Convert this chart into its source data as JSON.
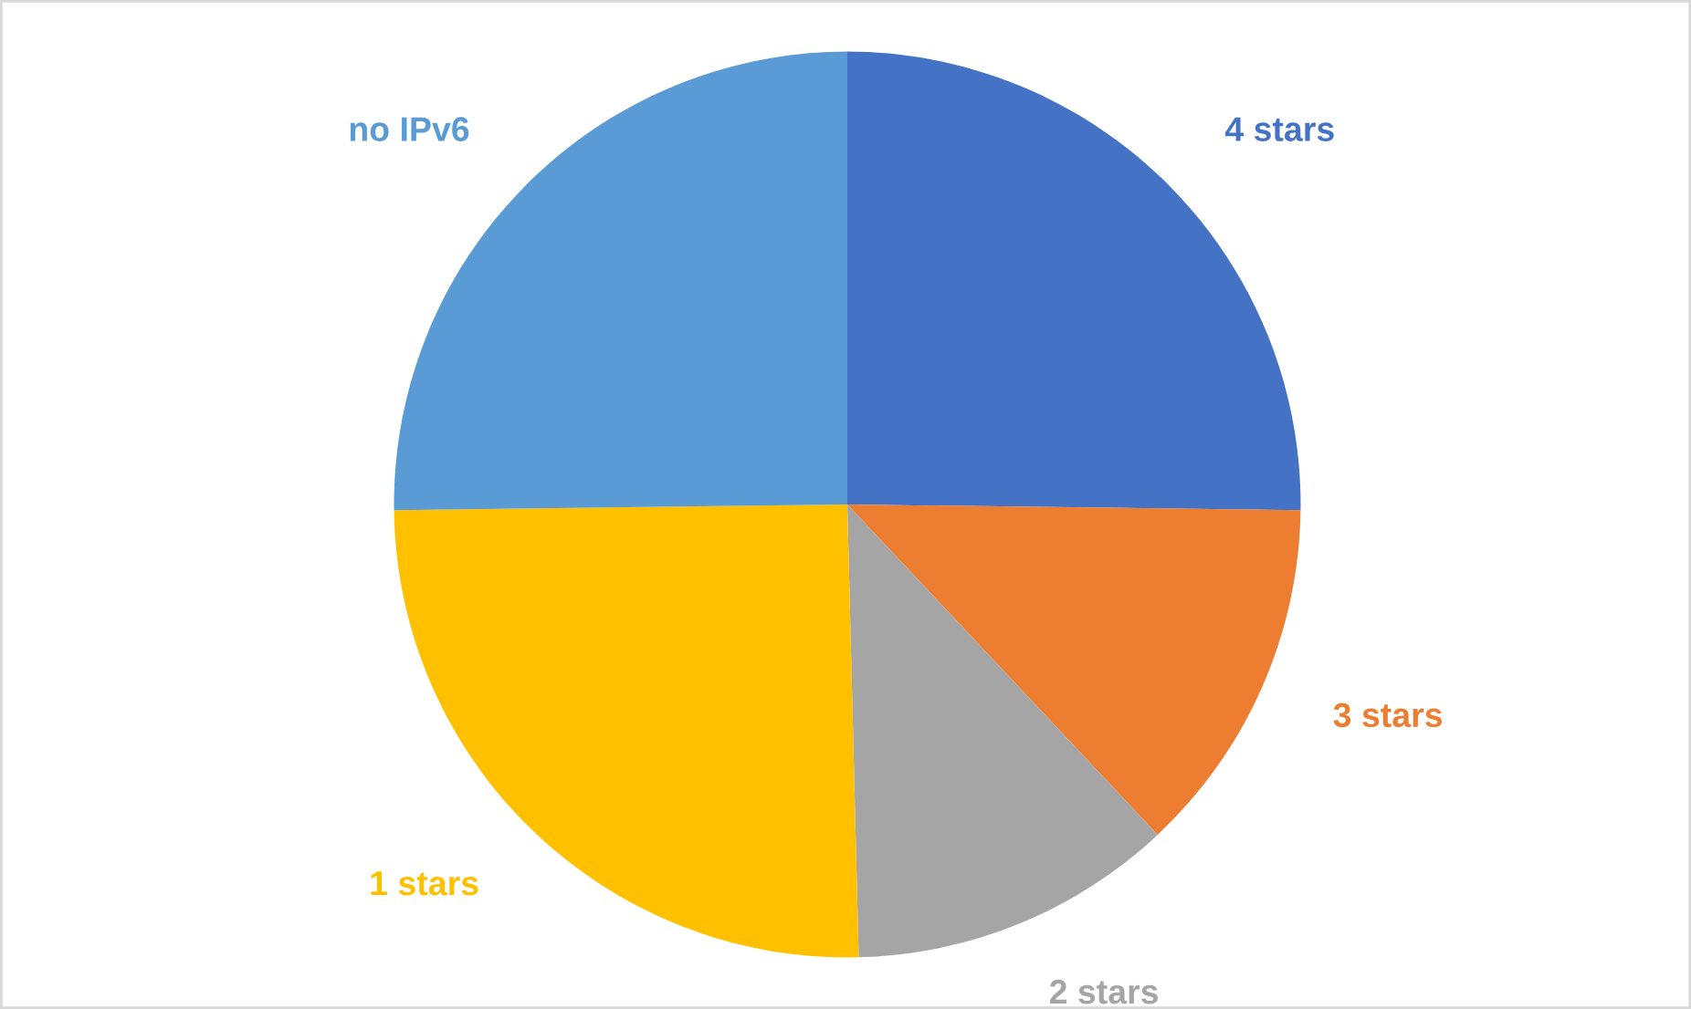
{
  "chart_data": {
    "type": "pie",
    "categories": [
      "4 stars",
      "3 stars",
      "2 stars",
      "1 stars",
      "no IPv6"
    ],
    "values": [
      25.2,
      12.8,
      11.6,
      25.2,
      25.2
    ],
    "colors": [
      "#4472c4",
      "#ed7d31",
      "#a5a5a5",
      "#ffc000",
      "#5b9bd5"
    ]
  }
}
